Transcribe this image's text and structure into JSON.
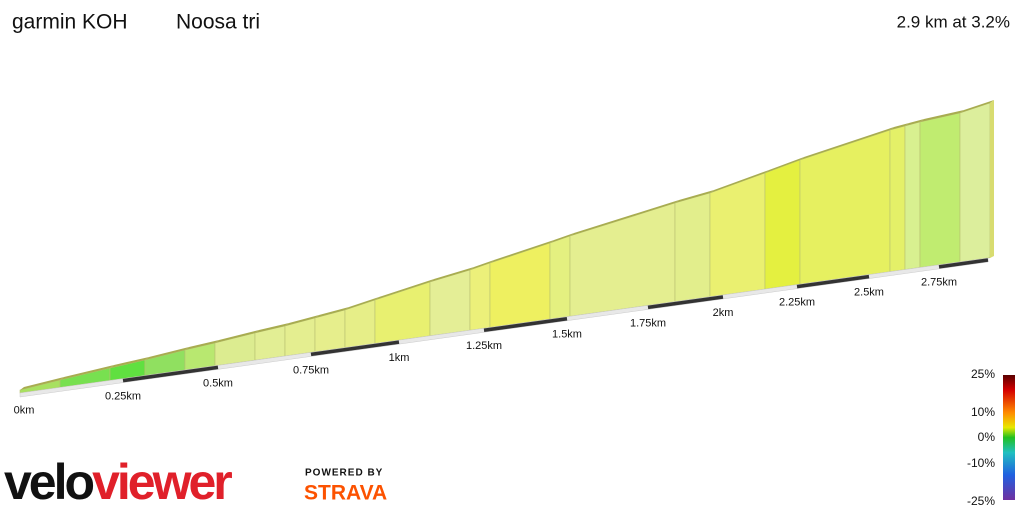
{
  "header": {
    "title": "garmin KOH",
    "segment": "Noosa tri",
    "summary": "2.9 km at 3.2%"
  },
  "distance_labels": [
    "0km",
    "0.25km",
    "0.5km",
    "0.75km",
    "1km",
    "1.25km",
    "1.5km",
    "1.75km",
    "2km",
    "2.25km",
    "2.5km",
    "2.75km"
  ],
  "legend": {
    "labels": [
      "25%",
      "10%",
      "0%",
      "-10%",
      "-25%"
    ]
  },
  "branding": {
    "logo_velo": "velo",
    "logo_viewer": "viewer",
    "powered_by": "POWERED BY",
    "strava": "STRAVA"
  }
}
